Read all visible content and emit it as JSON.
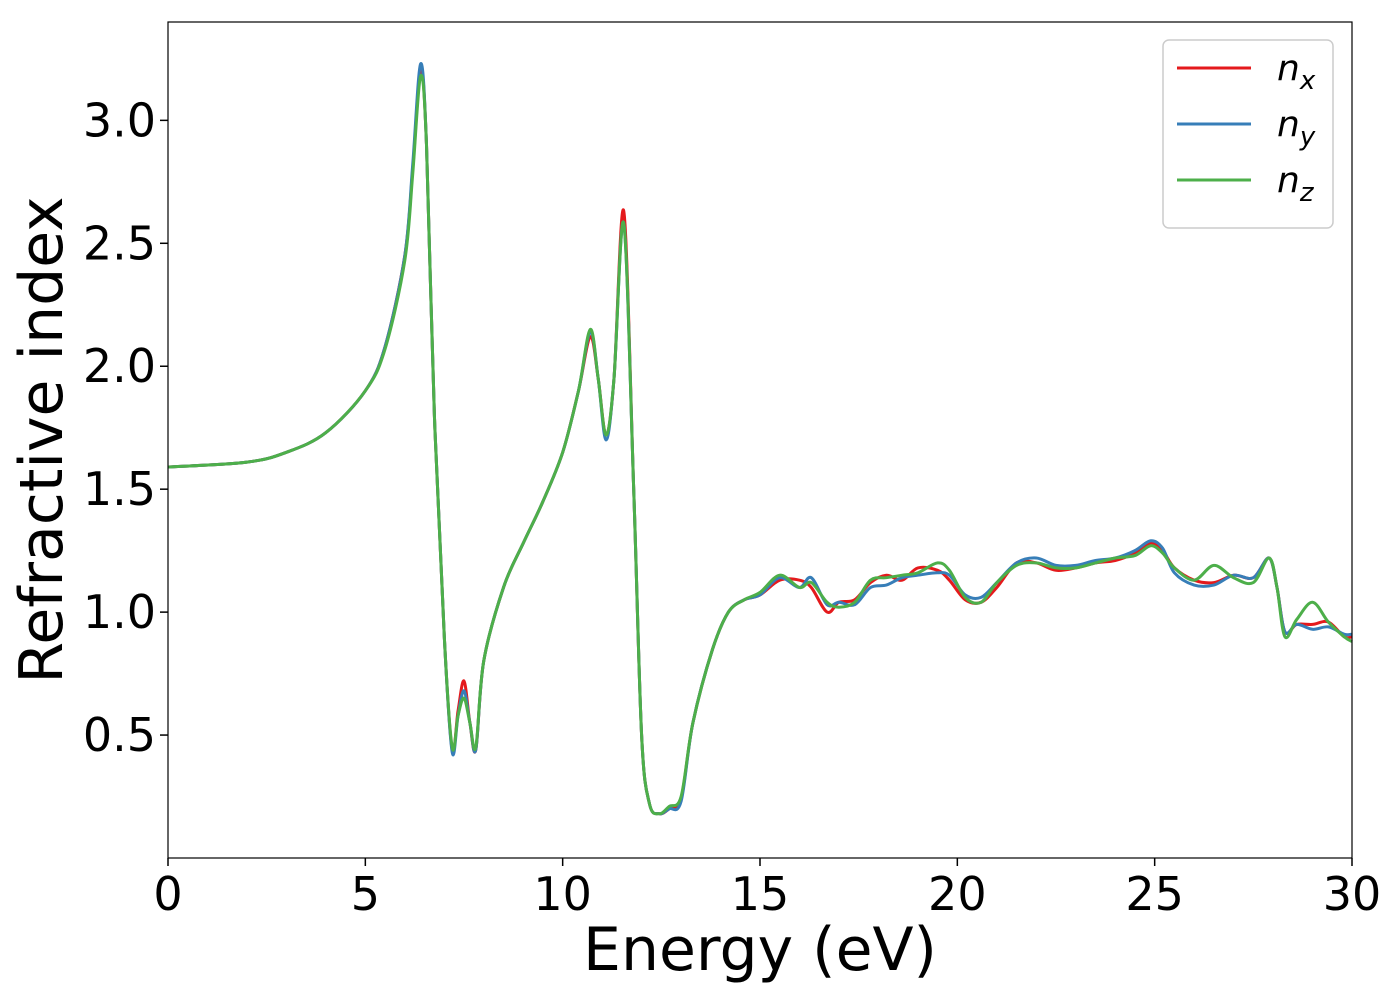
{
  "chart_data": {
    "type": "line",
    "title": "",
    "xlabel": "Energy (eV)",
    "ylabel": "Refractive index",
    "xlim": [
      0,
      30
    ],
    "ylim": [
      0.0,
      3.4
    ],
    "xticks": [
      0,
      5,
      10,
      15,
      20,
      25,
      30
    ],
    "xtick_labels": [
      "0",
      "5",
      "10",
      "15",
      "20",
      "25",
      "30"
    ],
    "yticks": [
      0.5,
      1.0,
      1.5,
      2.0,
      2.5,
      3.0
    ],
    "ytick_labels": [
      "0.5",
      "1.0",
      "1.5",
      "2.0",
      "2.5",
      "3.0"
    ],
    "grid": false,
    "legend_position": "top-right",
    "series": [
      {
        "name": "n_x",
        "label_base": "n",
        "label_sub": "x",
        "color": "#e41a1c",
        "points": [
          [
            0,
            1.59
          ],
          [
            2,
            1.61
          ],
          [
            3,
            1.65
          ],
          [
            4,
            1.73
          ],
          [
            5,
            1.9
          ],
          [
            5.5,
            2.08
          ],
          [
            6.0,
            2.45
          ],
          [
            6.2,
            2.8
          ],
          [
            6.4,
            3.2
          ],
          [
            6.55,
            2.9
          ],
          [
            6.75,
            1.8
          ],
          [
            7.0,
            0.9
          ],
          [
            7.2,
            0.44
          ],
          [
            7.35,
            0.6
          ],
          [
            7.5,
            0.72
          ],
          [
            7.65,
            0.55
          ],
          [
            7.8,
            0.44
          ],
          [
            8.0,
            0.8
          ],
          [
            8.5,
            1.1
          ],
          [
            9.0,
            1.28
          ],
          [
            9.5,
            1.45
          ],
          [
            10.0,
            1.65
          ],
          [
            10.4,
            1.9
          ],
          [
            10.7,
            2.12
          ],
          [
            10.9,
            1.95
          ],
          [
            11.1,
            1.72
          ],
          [
            11.3,
            1.95
          ],
          [
            11.55,
            2.63
          ],
          [
            11.8,
            1.5
          ],
          [
            12.0,
            0.5
          ],
          [
            12.2,
            0.22
          ],
          [
            12.45,
            0.18
          ],
          [
            12.7,
            0.2
          ],
          [
            13.0,
            0.24
          ],
          [
            13.3,
            0.55
          ],
          [
            13.8,
            0.85
          ],
          [
            14.2,
            1.0
          ],
          [
            14.6,
            1.05
          ],
          [
            15.0,
            1.07
          ],
          [
            15.5,
            1.13
          ],
          [
            16.0,
            1.13
          ],
          [
            16.3,
            1.1
          ],
          [
            16.7,
            1.0
          ],
          [
            17.0,
            1.04
          ],
          [
            17.4,
            1.05
          ],
          [
            17.8,
            1.12
          ],
          [
            18.2,
            1.15
          ],
          [
            18.6,
            1.13
          ],
          [
            19.0,
            1.18
          ],
          [
            19.5,
            1.17
          ],
          [
            19.8,
            1.13
          ],
          [
            20.2,
            1.05
          ],
          [
            20.6,
            1.04
          ],
          [
            21.0,
            1.1
          ],
          [
            21.5,
            1.2
          ],
          [
            22.0,
            1.2
          ],
          [
            22.5,
            1.17
          ],
          [
            23.0,
            1.18
          ],
          [
            23.5,
            1.2
          ],
          [
            24.0,
            1.21
          ],
          [
            24.5,
            1.24
          ],
          [
            24.9,
            1.28
          ],
          [
            25.2,
            1.25
          ],
          [
            25.5,
            1.18
          ],
          [
            26.0,
            1.13
          ],
          [
            26.5,
            1.12
          ],
          [
            27.0,
            1.15
          ],
          [
            27.5,
            1.14
          ],
          [
            27.9,
            1.22
          ],
          [
            28.1,
            1.1
          ],
          [
            28.3,
            0.92
          ],
          [
            28.6,
            0.95
          ],
          [
            29.0,
            0.95
          ],
          [
            29.4,
            0.96
          ],
          [
            29.8,
            0.9
          ],
          [
            30.0,
            0.9
          ]
        ]
      },
      {
        "name": "n_y",
        "label_base": "n",
        "label_sub": "y",
        "color": "#377eb8",
        "points": [
          [
            0,
            1.59
          ],
          [
            2,
            1.61
          ],
          [
            3,
            1.65
          ],
          [
            4,
            1.73
          ],
          [
            5,
            1.9
          ],
          [
            5.5,
            2.08
          ],
          [
            6.0,
            2.45
          ],
          [
            6.2,
            2.82
          ],
          [
            6.4,
            3.23
          ],
          [
            6.55,
            2.9
          ],
          [
            6.75,
            1.8
          ],
          [
            7.0,
            0.9
          ],
          [
            7.2,
            0.43
          ],
          [
            7.35,
            0.58
          ],
          [
            7.5,
            0.68
          ],
          [
            7.65,
            0.55
          ],
          [
            7.8,
            0.44
          ],
          [
            8.0,
            0.8
          ],
          [
            8.5,
            1.1
          ],
          [
            9.0,
            1.28
          ],
          [
            9.5,
            1.45
          ],
          [
            10.0,
            1.65
          ],
          [
            10.4,
            1.9
          ],
          [
            10.7,
            2.14
          ],
          [
            10.9,
            1.95
          ],
          [
            11.1,
            1.7
          ],
          [
            11.3,
            1.95
          ],
          [
            11.55,
            2.58
          ],
          [
            11.8,
            1.5
          ],
          [
            12.0,
            0.5
          ],
          [
            12.2,
            0.22
          ],
          [
            12.45,
            0.18
          ],
          [
            12.7,
            0.2
          ],
          [
            13.0,
            0.23
          ],
          [
            13.3,
            0.55
          ],
          [
            13.8,
            0.85
          ],
          [
            14.2,
            1.0
          ],
          [
            14.6,
            1.05
          ],
          [
            15.0,
            1.07
          ],
          [
            15.5,
            1.14
          ],
          [
            16.0,
            1.1
          ],
          [
            16.3,
            1.14
          ],
          [
            16.7,
            1.03
          ],
          [
            17.0,
            1.04
          ],
          [
            17.4,
            1.03
          ],
          [
            17.8,
            1.1
          ],
          [
            18.2,
            1.11
          ],
          [
            18.6,
            1.14
          ],
          [
            19.0,
            1.15
          ],
          [
            19.5,
            1.16
          ],
          [
            19.8,
            1.15
          ],
          [
            20.2,
            1.07
          ],
          [
            20.6,
            1.06
          ],
          [
            21.0,
            1.12
          ],
          [
            21.5,
            1.2
          ],
          [
            22.0,
            1.22
          ],
          [
            22.5,
            1.19
          ],
          [
            23.0,
            1.19
          ],
          [
            23.5,
            1.21
          ],
          [
            24.0,
            1.22
          ],
          [
            24.5,
            1.25
          ],
          [
            24.9,
            1.29
          ],
          [
            25.2,
            1.26
          ],
          [
            25.5,
            1.16
          ],
          [
            26.0,
            1.11
          ],
          [
            26.5,
            1.11
          ],
          [
            27.0,
            1.15
          ],
          [
            27.5,
            1.14
          ],
          [
            27.9,
            1.22
          ],
          [
            28.1,
            1.1
          ],
          [
            28.3,
            0.92
          ],
          [
            28.6,
            0.95
          ],
          [
            29.0,
            0.93
          ],
          [
            29.4,
            0.94
          ],
          [
            29.8,
            0.91
          ],
          [
            30.0,
            0.91
          ]
        ]
      },
      {
        "name": "n_z",
        "label_base": "n",
        "label_sub": "z",
        "color": "#4daf4a",
        "points": [
          [
            0,
            1.59
          ],
          [
            2,
            1.61
          ],
          [
            3,
            1.65
          ],
          [
            4,
            1.73
          ],
          [
            5,
            1.9
          ],
          [
            5.5,
            2.07
          ],
          [
            6.0,
            2.43
          ],
          [
            6.2,
            2.78
          ],
          [
            6.4,
            3.18
          ],
          [
            6.55,
            2.9
          ],
          [
            6.75,
            1.8
          ],
          [
            7.0,
            0.9
          ],
          [
            7.2,
            0.45
          ],
          [
            7.35,
            0.58
          ],
          [
            7.5,
            0.65
          ],
          [
            7.65,
            0.55
          ],
          [
            7.8,
            0.45
          ],
          [
            8.0,
            0.8
          ],
          [
            8.5,
            1.1
          ],
          [
            9.0,
            1.28
          ],
          [
            9.5,
            1.45
          ],
          [
            10.0,
            1.65
          ],
          [
            10.4,
            1.9
          ],
          [
            10.7,
            2.15
          ],
          [
            10.9,
            1.95
          ],
          [
            11.1,
            1.72
          ],
          [
            11.3,
            1.95
          ],
          [
            11.55,
            2.58
          ],
          [
            11.8,
            1.5
          ],
          [
            12.0,
            0.5
          ],
          [
            12.2,
            0.22
          ],
          [
            12.45,
            0.18
          ],
          [
            12.7,
            0.21
          ],
          [
            13.0,
            0.25
          ],
          [
            13.3,
            0.55
          ],
          [
            13.8,
            0.85
          ],
          [
            14.2,
            1.0
          ],
          [
            14.6,
            1.05
          ],
          [
            15.0,
            1.08
          ],
          [
            15.5,
            1.15
          ],
          [
            16.0,
            1.1
          ],
          [
            16.3,
            1.12
          ],
          [
            16.7,
            1.04
          ],
          [
            17.0,
            1.02
          ],
          [
            17.4,
            1.04
          ],
          [
            17.8,
            1.13
          ],
          [
            18.2,
            1.14
          ],
          [
            18.6,
            1.15
          ],
          [
            19.0,
            1.16
          ],
          [
            19.5,
            1.2
          ],
          [
            19.8,
            1.17
          ],
          [
            20.2,
            1.06
          ],
          [
            20.6,
            1.04
          ],
          [
            21.0,
            1.12
          ],
          [
            21.5,
            1.19
          ],
          [
            22.0,
            1.2
          ],
          [
            22.5,
            1.18
          ],
          [
            23.0,
            1.18
          ],
          [
            23.5,
            1.2
          ],
          [
            24.0,
            1.22
          ],
          [
            24.5,
            1.23
          ],
          [
            24.9,
            1.27
          ],
          [
            25.2,
            1.24
          ],
          [
            25.5,
            1.18
          ],
          [
            26.0,
            1.13
          ],
          [
            26.5,
            1.19
          ],
          [
            27.0,
            1.14
          ],
          [
            27.5,
            1.12
          ],
          [
            27.9,
            1.22
          ],
          [
            28.1,
            1.1
          ],
          [
            28.3,
            0.9
          ],
          [
            28.6,
            0.97
          ],
          [
            29.0,
            1.04
          ],
          [
            29.4,
            0.96
          ],
          [
            29.8,
            0.9
          ],
          [
            30.0,
            0.88
          ]
        ]
      }
    ]
  }
}
